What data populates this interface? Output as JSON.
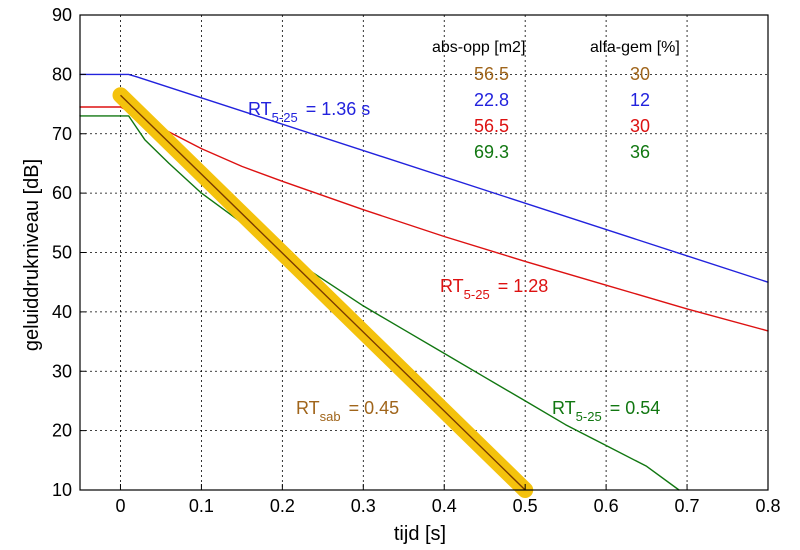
{
  "chart_data": {
    "type": "line",
    "xlabel": "tijd  [s]",
    "ylabel": "geluiddrukniveau  [dB]",
    "xlim": [
      -0.05,
      0.8
    ],
    "ylim": [
      10,
      90
    ],
    "grid": true,
    "x_ticks": [
      "0",
      "0.1",
      "0.2",
      "0.3",
      "0.4",
      "0.5",
      "0.6",
      "0.7",
      "0.8"
    ],
    "y_ticks": [
      "10",
      "20",
      "30",
      "40",
      "50",
      "60",
      "70",
      "80",
      "90"
    ],
    "table": {
      "headers": [
        "abs-opp [m2]",
        "alfa-gem [%]"
      ],
      "rows": [
        {
          "abs_opp": "56.5",
          "alfa_gem": "30",
          "color": "#a0651b"
        },
        {
          "abs_opp": "22.8",
          "alfa_gem": "12",
          "color": "#2222dd"
        },
        {
          "abs_opp": "56.5",
          "alfa_gem": "30",
          "color": "#dd1111"
        },
        {
          "abs_opp": "69.3",
          "alfa_gem": "36",
          "color": "#117711"
        }
      ]
    },
    "series": [
      {
        "color": "#2222dd",
        "x": [
          -0.05,
          0.01,
          0.02,
          0.8
        ],
        "y": [
          80,
          80,
          79.6,
          45.0
        ]
      },
      {
        "color": "#dd1111",
        "x": [
          -0.05,
          0.0,
          0.05,
          0.1,
          0.15,
          0.2,
          0.3,
          0.4,
          0.5,
          0.6,
          0.7,
          0.8
        ],
        "y": [
          74.5,
          74.5,
          71.0,
          67.5,
          64.5,
          62.0,
          57.2,
          52.7,
          48.5,
          44.5,
          40.5,
          36.8
        ]
      },
      {
        "color": "#117711",
        "x": [
          -0.05,
          0.01,
          0.03,
          0.06,
          0.1,
          0.15,
          0.2,
          0.25,
          0.3,
          0.35,
          0.4,
          0.45,
          0.5,
          0.55,
          0.6,
          0.65,
          0.69
        ],
        "y": [
          73.0,
          73.0,
          69.0,
          65.0,
          60.0,
          55.0,
          50.0,
          45.5,
          41.0,
          37.0,
          33.0,
          29.0,
          25.0,
          21.0,
          17.5,
          14.0,
          10.0
        ]
      },
      {
        "color": "#f4c20d",
        "x": [
          0.0,
          0.5
        ],
        "y": [
          76.5,
          10.0
        ]
      }
    ],
    "annotations": [
      {
        "text": "RT",
        "sub": "5-25",
        "rest": "=  1.36 s",
        "color": "#2222dd"
      },
      {
        "text": "RT",
        "sub": "5-25",
        "rest": "=  1.28",
        "color": "#dd1111"
      },
      {
        "text": "RT",
        "sub": "5-25",
        "rest": "=  0.54",
        "color": "#117711"
      },
      {
        "text": "RT",
        "sub": "sab",
        "rest": "=  0.45",
        "color": "#a0651b"
      }
    ]
  }
}
